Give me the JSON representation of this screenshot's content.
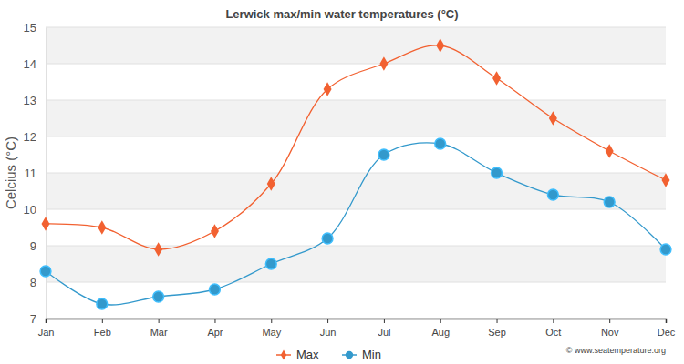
{
  "chart_data": {
    "type": "line",
    "title": "Lerwick max/min water temperatures (°C)",
    "ylabel": "Celcius (°C)",
    "annotations": [
      "© www.seatemperature.org"
    ],
    "categories": [
      "Jan",
      "Feb",
      "Mar",
      "Apr",
      "May",
      "Jun",
      "Jul",
      "Aug",
      "Sep",
      "Oct",
      "Nov",
      "Dec"
    ],
    "series": [
      {
        "name": "Max",
        "color": "#f26131",
        "marker": "diamond",
        "values": [
          9.6,
          9.5,
          8.9,
          9.4,
          10.7,
          13.3,
          14.0,
          14.5,
          13.6,
          12.5,
          11.6,
          10.8
        ]
      },
      {
        "name": "Min",
        "color": "#3399cc",
        "marker": "circle",
        "values": [
          8.3,
          7.4,
          7.6,
          7.8,
          8.5,
          9.2,
          11.5,
          11.8,
          11.0,
          10.4,
          10.2,
          8.9
        ]
      }
    ],
    "ylim": [
      7,
      15
    ],
    "yticks": [
      7,
      8,
      9,
      10,
      11,
      12,
      13,
      14,
      15
    ],
    "grid": true,
    "legend": "bottom"
  }
}
